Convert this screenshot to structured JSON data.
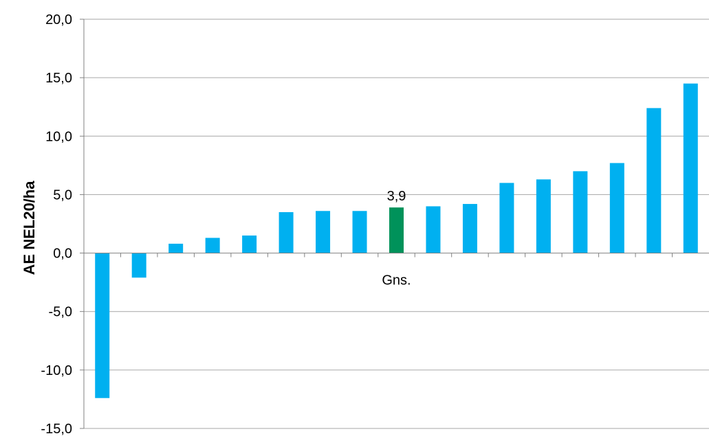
{
  "chart_data": {
    "type": "bar",
    "ylabel": "AE NEL20/ha",
    "ylim": [
      -15,
      20
    ],
    "yticks": [
      "20,0",
      "15,0",
      "10,0",
      "5,0",
      "0,0",
      "-5,0",
      "-10,0",
      "-15,0"
    ],
    "ytick_values": [
      20,
      15,
      10,
      5,
      0,
      -5,
      -10,
      -15
    ],
    "grid": true,
    "legend": "none",
    "highlight_category": "Gns.",
    "highlight_label": "3,9",
    "colors": {
      "bar": "#00B0F0",
      "highlight": "#00925A",
      "grid": "#A6A6A6",
      "axis": "#808080"
    },
    "categories": [
      "",
      "",
      "",
      "",
      "",
      "",
      "",
      "",
      "Gns.",
      "",
      "",
      "",
      "",
      "",
      "",
      "",
      ""
    ],
    "values": [
      -12.4,
      -2.1,
      0.8,
      1.3,
      1.5,
      3.5,
      3.6,
      3.6,
      3.9,
      4.0,
      4.2,
      6.0,
      6.3,
      7.0,
      7.7,
      12.4,
      14.5
    ]
  }
}
